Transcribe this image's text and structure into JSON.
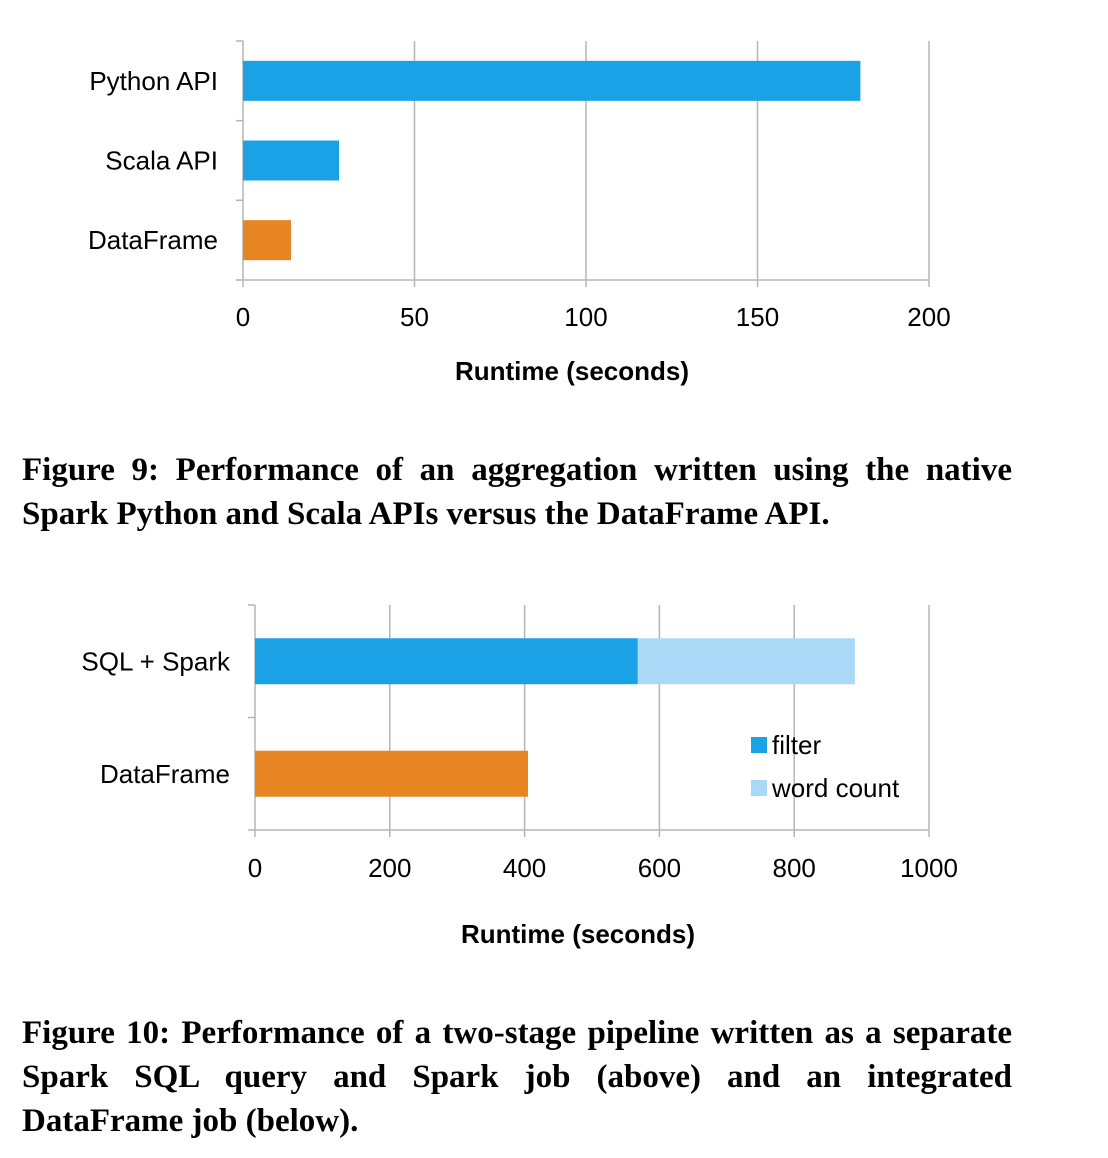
{
  "figures": [
    {
      "caption": "Figure 9: Performance of an aggregation written using the native Spark Python and Scala APIs versus the DataFrame API."
    },
    {
      "caption": "Figure 10: Performance of a two-stage pipeline written as a separate Spark SQL query and Spark job (above) and an integrated DataFrame job (below)."
    }
  ],
  "chart_data": [
    {
      "type": "bar",
      "orientation": "horizontal",
      "categories": [
        "Python API",
        "Scala API",
        "DataFrame"
      ],
      "values": [
        180,
        28,
        14
      ],
      "colors": [
        "#1ba1e6",
        "#1ba1e6",
        "#e88523"
      ],
      "xlabel": "Runtime (seconds)",
      "ylabel": "",
      "xlim": [
        0,
        200
      ],
      "xticks": [
        0,
        50,
        100,
        150,
        200
      ],
      "grid": "vertical",
      "legend": null
    },
    {
      "type": "bar",
      "orientation": "horizontal",
      "stacked": true,
      "categories": [
        "SQL + Spark",
        "DataFrame"
      ],
      "series": [
        {
          "name": "filter",
          "values": [
            568,
            0
          ],
          "color": "#1ba1e6"
        },
        {
          "name": "word count",
          "values": [
            322,
            0
          ],
          "color": "#aad8f7"
        },
        {
          "name": "",
          "values": [
            0,
            405
          ],
          "color": "#e88523"
        }
      ],
      "xlabel": "Runtime (seconds)",
      "ylabel": "",
      "xlim": [
        0,
        1000
      ],
      "xticks": [
        0,
        200,
        400,
        600,
        800,
        1000
      ],
      "grid": "vertical",
      "legend": {
        "position": "lower-right",
        "entries": [
          "filter",
          "word count"
        ]
      }
    }
  ]
}
